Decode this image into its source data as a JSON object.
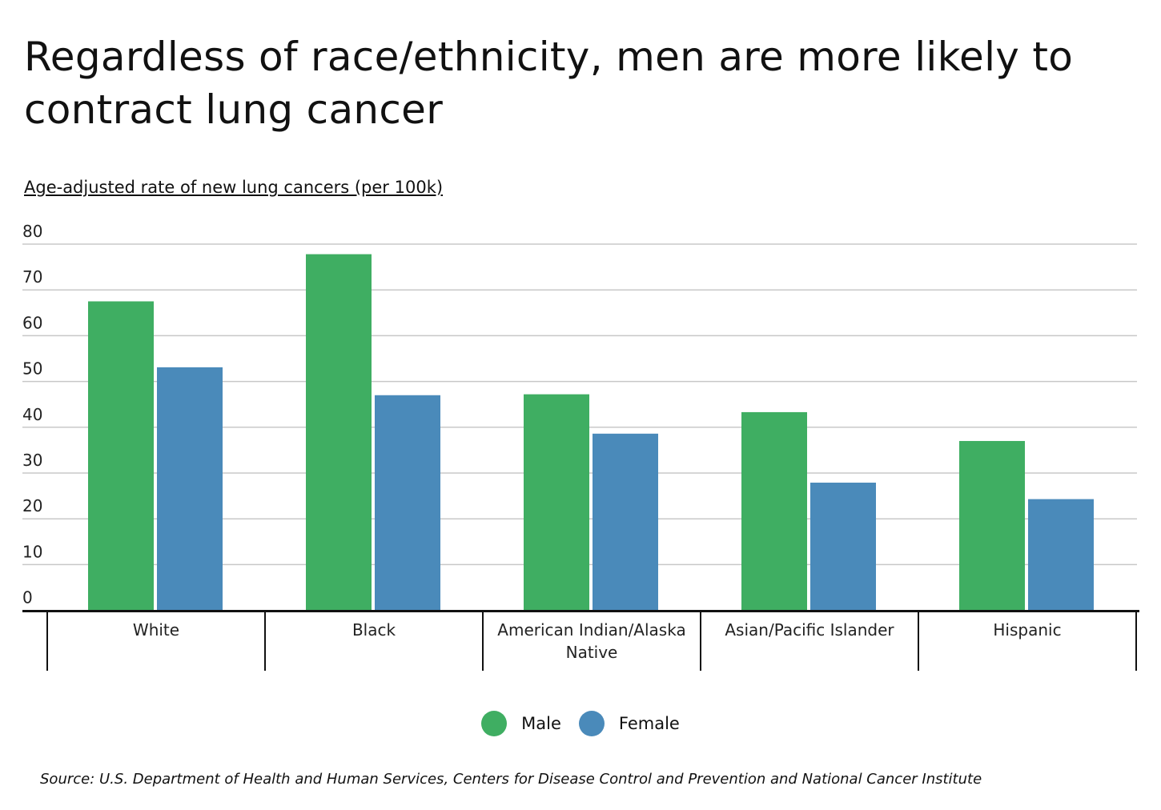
{
  "chart_data": {
    "type": "bar",
    "title": "Regardless of race/ethnicity, men are more likely to contract lung cancer",
    "ylabel": "Age-adjusted rate of new lung cancers (per 100k)",
    "xlabel": "",
    "ylim": [
      0,
      80
    ],
    "yticks": [
      "0",
      "10",
      "20",
      "30",
      "40",
      "50",
      "60",
      "70",
      "80"
    ],
    "grid": true,
    "legend_position": "bottom",
    "categories": [
      "White",
      "Black",
      "American Indian/Alaska Native",
      "Asian/Pacific Islander",
      "Hispanic"
    ],
    "series": [
      {
        "name": "Male",
        "color": "#3fae62",
        "values": [
          67.5,
          77.8,
          47.2,
          43.3,
          37.0
        ]
      },
      {
        "name": "Female",
        "color": "#4a8aba",
        "values": [
          53.1,
          47.0,
          38.6,
          27.9,
          24.3
        ]
      }
    ],
    "source": "Source:  U.S. Department of Health and Human Services, Centers for Disease Control and Prevention and National Cancer Institute"
  }
}
